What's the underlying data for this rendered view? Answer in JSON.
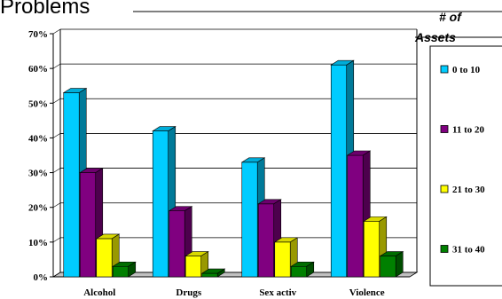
{
  "chart_data": {
    "type": "bar",
    "title": "Problems",
    "categories": [
      "Alcohol",
      "Drugs",
      "Sex activ",
      "Violence"
    ],
    "series": [
      {
        "name": "0 to 10",
        "color": "#00ccff",
        "values": [
          53,
          42,
          33,
          61
        ]
      },
      {
        "name": "11 to 20",
        "color": "#800080",
        "values": [
          30,
          19,
          21,
          35
        ]
      },
      {
        "name": "21 to 30",
        "color": "#ffff00",
        "values": [
          11,
          6,
          10,
          16
        ]
      },
      {
        "name": "31 to 40",
        "color": "#008000",
        "values": [
          3,
          1,
          3,
          6
        ]
      }
    ],
    "yticks": [
      "0%",
      "10%",
      "20%",
      "30%",
      "40%",
      "50%",
      "60%",
      "70%"
    ],
    "ylim": [
      0,
      70
    ],
    "legend_title": "# of Assets",
    "legend_position": "right",
    "grid": true
  }
}
